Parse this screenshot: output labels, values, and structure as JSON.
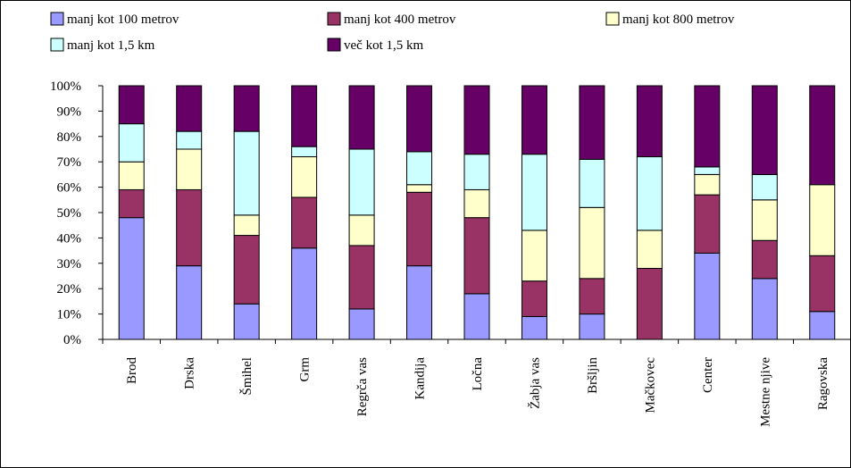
{
  "chart_data": {
    "type": "bar",
    "stacked": true,
    "percent_stacked": true,
    "categories": [
      "Brod",
      "Drska",
      "Šmihel",
      "Grm",
      "Regrča vas",
      "Kandija",
      "Ločna",
      "Žabja vas",
      "Bršljin",
      "Mačkovec",
      "Center",
      "Mestne njive",
      "Ragovska"
    ],
    "series": [
      {
        "name": "manj kot 100 metrov",
        "color": "#9999FF",
        "values": [
          48,
          29,
          14,
          36,
          12,
          29,
          18,
          9,
          10,
          0,
          34,
          24,
          11
        ]
      },
      {
        "name": "manj kot 400 metrov",
        "color": "#993366",
        "values": [
          11,
          30,
          27,
          20,
          25,
          29,
          30,
          14,
          14,
          28,
          23,
          15,
          22
        ]
      },
      {
        "name": "manj kot 800 metrov",
        "color": "#FFFFCC",
        "values": [
          11,
          16,
          8,
          16,
          12,
          3,
          11,
          20,
          28,
          15,
          8,
          16,
          28
        ]
      },
      {
        "name": "manj kot 1,5 km",
        "color": "#CCFFFF",
        "values": [
          15,
          7,
          33,
          4,
          26,
          13,
          14,
          30,
          19,
          29,
          3,
          10,
          0
        ]
      },
      {
        "name": "več kot 1,5 km",
        "color": "#660066",
        "values": [
          15,
          18,
          18,
          24,
          25,
          26,
          27,
          27,
          29,
          28,
          32,
          35,
          39
        ]
      }
    ],
    "yticks": [
      "0%",
      "10%",
      "20%",
      "30%",
      "40%",
      "50%",
      "60%",
      "70%",
      "80%",
      "90%",
      "100%"
    ],
    "ylim": [
      0,
      100
    ],
    "legend_position": "top",
    "grid": false
  }
}
